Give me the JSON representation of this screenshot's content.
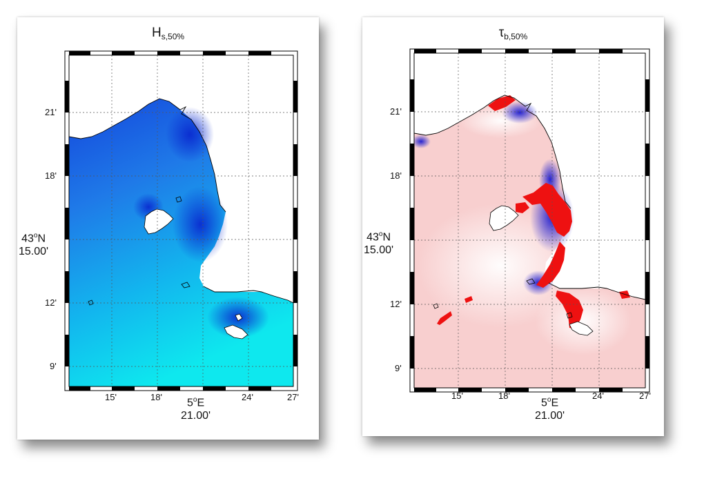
{
  "panels": [
    {
      "title_symbol": "H",
      "title_subscript": "s,50%",
      "x_ticks": [
        "15'",
        "18'",
        "24'",
        "27'"
      ],
      "y_ticks": [
        "21'",
        "18'",
        "12'",
        "9'"
      ],
      "lat_label_deg": "43",
      "lat_label_hemi": "N",
      "lat_label_min": "15.00'",
      "lon_label_deg": "5",
      "lon_label_hemi": "E",
      "lon_label_min": "21.00'",
      "colormap": "blue-to-cyan"
    },
    {
      "title_symbol": "τ",
      "title_subscript": "b,50%",
      "x_ticks": [
        "15'",
        "18'",
        "24'",
        "27'"
      ],
      "y_ticks": [
        "21'",
        "18'",
        "12'",
        "9'"
      ],
      "lat_label_deg": "43",
      "lat_label_hemi": "N",
      "lat_label_min": "15.00'",
      "lon_label_deg": "5",
      "lon_label_hemi": "E",
      "lon_label_min": "21.00'",
      "colormap": "blue-white-red"
    }
  ],
  "degree_symbol": "o",
  "colors": {
    "hs_deep": "#1446dc",
    "hs_shallow": "#0ee6ee",
    "tau_pink": "#f8cccc",
    "tau_red": "#ee1111",
    "tau_blue": "#1a1ad0",
    "coastline": "#000000"
  }
}
